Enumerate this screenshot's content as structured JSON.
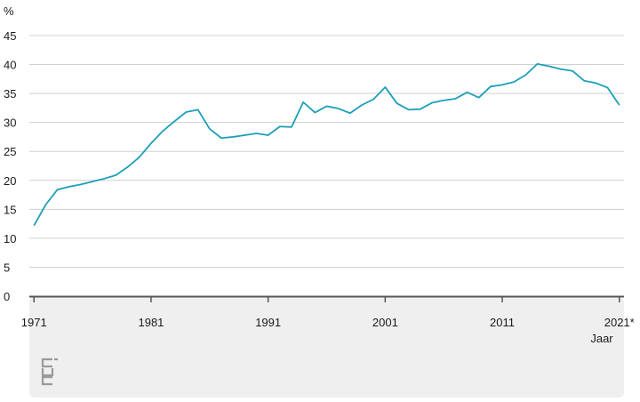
{
  "chart_data": {
    "type": "line",
    "title": "",
    "ylabel": "%",
    "xlabel": "Jaar",
    "ylim": [
      0,
      45
    ],
    "y_ticks": [
      0,
      5,
      10,
      15,
      20,
      25,
      30,
      35,
      40,
      45
    ],
    "x_ticks": [
      {
        "value": 1971,
        "label": "1971"
      },
      {
        "value": 1981,
        "label": "1981"
      },
      {
        "value": 1991,
        "label": "1991"
      },
      {
        "value": 2001,
        "label": "2001"
      },
      {
        "value": 2011,
        "label": "2011"
      },
      {
        "value": 2021,
        "label": "2021*"
      }
    ],
    "grid": true,
    "line_color": "#1ba0b8",
    "x": [
      1971,
      1972,
      1973,
      1974,
      1975,
      1976,
      1977,
      1978,
      1979,
      1980,
      1981,
      1982,
      1983,
      1984,
      1985,
      1986,
      1987,
      1988,
      1989,
      1990,
      1991,
      1992,
      1993,
      1994,
      1995,
      1996,
      1997,
      1998,
      1999,
      2000,
      2001,
      2002,
      2003,
      2004,
      2005,
      2006,
      2007,
      2008,
      2009,
      2010,
      2011,
      2012,
      2013,
      2014,
      2015,
      2016,
      2017,
      2018,
      2019,
      2020,
      2021,
      2022
    ],
    "y": [
      12.2,
      15.8,
      18.4,
      18.9,
      19.3,
      19.8,
      20.3,
      20.9,
      22.3,
      24.0,
      26.4,
      28.5,
      30.2,
      31.8,
      32.2,
      28.9,
      27.3,
      27.5,
      27.8,
      28.1,
      27.8,
      29.3,
      29.2,
      33.5,
      31.7,
      32.8,
      32.4,
      31.6,
      33.0,
      34.0,
      36.1,
      33.3,
      32.2,
      32.3,
      33.4,
      33.8,
      34.1,
      35.2,
      34.3,
      36.2,
      36.5,
      37.0,
      38.2,
      40.1,
      39.7,
      39.2,
      38.9,
      37.2,
      36.8,
      36.0,
      33.0,
      null
    ]
  },
  "footer": {
    "logo_text": "cbs",
    "logo_color": "#9a9a9a",
    "background": "#efefef"
  }
}
